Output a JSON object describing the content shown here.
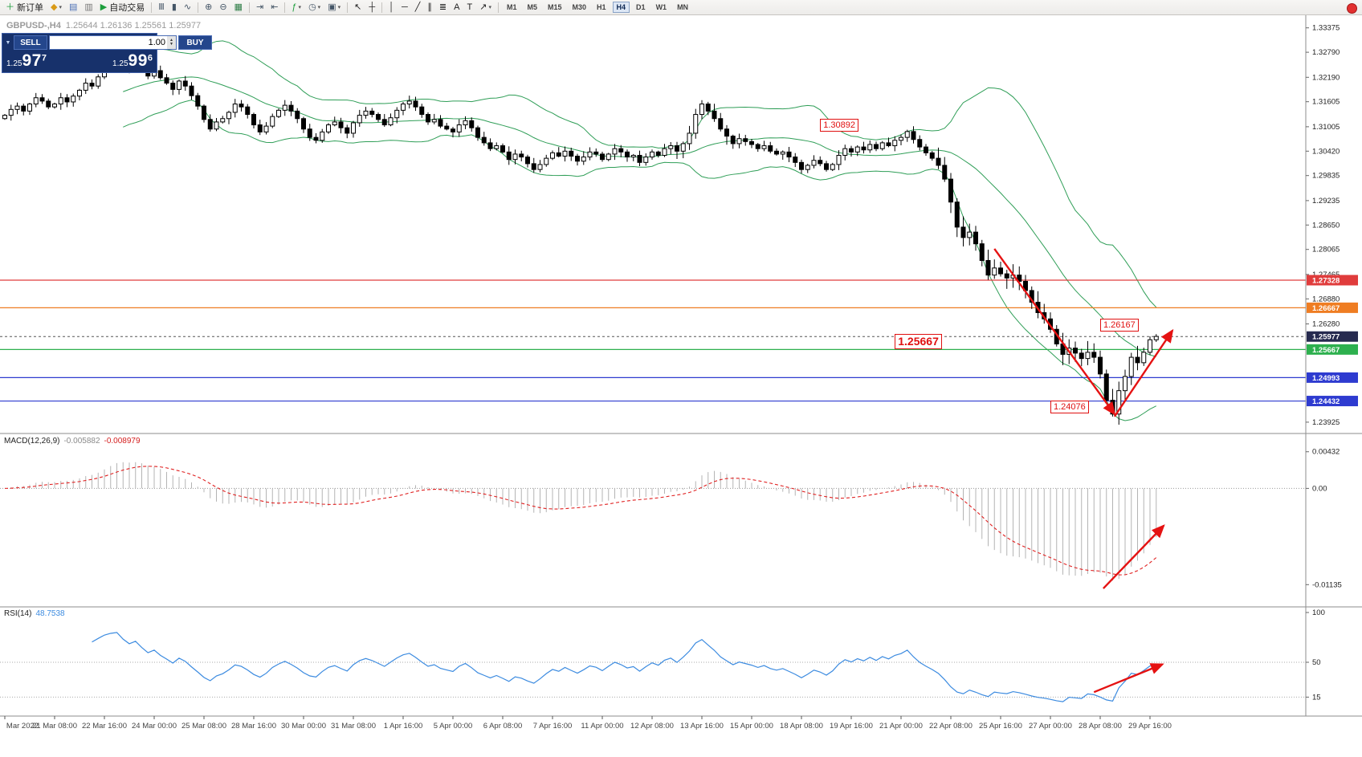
{
  "toolbar": {
    "items": [
      {
        "name": "new-order-button",
        "glyph": "＋",
        "color": "#1d9e3c",
        "label": "新订单"
      },
      {
        "name": "charts-window-icon",
        "glyph": "◆",
        "color": "#d99a16",
        "caret": true
      },
      {
        "name": "profiles-icon",
        "glyph": "▤",
        "color": "#4b6fb5"
      },
      {
        "name": "market-watch-icon",
        "glyph": "▥",
        "color": "#777777"
      },
      {
        "name": "autotrading-button",
        "glyph": "▶",
        "color": "#1d9e3c",
        "label": "自动交易"
      },
      {
        "type": "sep"
      },
      {
        "name": "bar-chart-icon",
        "glyph": "Ⅲ",
        "color": "#445566"
      },
      {
        "name": "candlestick-chart-icon",
        "glyph": "▮",
        "color": "#445566"
      },
      {
        "name": "line-chart-icon",
        "glyph": "∿",
        "color": "#445566"
      },
      {
        "type": "sep"
      },
      {
        "name": "zoom-in-icon",
        "glyph": "⊕",
        "color": "#445566"
      },
      {
        "name": "zoom-out-icon",
        "glyph": "⊖",
        "color": "#445566"
      },
      {
        "name": "tile-windows-icon",
        "glyph": "▦",
        "color": "#2d7d46"
      },
      {
        "type": "sep"
      },
      {
        "name": "auto-scroll-icon",
        "glyph": "⇥",
        "color": "#445566"
      },
      {
        "name": "chart-shift-icon",
        "glyph": "⇤",
        "color": "#445566"
      },
      {
        "type": "sep"
      },
      {
        "name": "indicators-icon",
        "glyph": "ƒ",
        "color": "#1d9e3c",
        "caret": true
      },
      {
        "name": "periods-icon",
        "glyph": "◷",
        "color": "#445566",
        "caret": true
      },
      {
        "name": "templates-icon",
        "glyph": "▣",
        "color": "#445566",
        "caret": true
      },
      {
        "type": "sep"
      },
      {
        "name": "cursor-icon",
        "glyph": "↖",
        "color": "#222222"
      },
      {
        "name": "crosshair-icon",
        "glyph": "┼",
        "color": "#222222"
      },
      {
        "type": "sep"
      },
      {
        "name": "vertical-line-icon",
        "glyph": "│",
        "color": "#222222"
      },
      {
        "name": "horizontal-line-icon",
        "glyph": "─",
        "color": "#222222"
      },
      {
        "name": "trendline-icon",
        "glyph": "╱",
        "color": "#222222"
      },
      {
        "name": "channel-icon",
        "glyph": "∥",
        "color": "#222222"
      },
      {
        "name": "fibonacci-icon",
        "glyph": "≣",
        "color": "#222222"
      },
      {
        "name": "text-icon",
        "glyph": "A",
        "color": "#222222"
      },
      {
        "name": "label-icon",
        "glyph": "T",
        "color": "#222222"
      },
      {
        "name": "arrows-tool-icon",
        "glyph": "↗",
        "color": "#222222",
        "caret": true
      },
      {
        "type": "sep"
      }
    ],
    "timeframes": [
      "M1",
      "M5",
      "M15",
      "M30",
      "H1",
      "H4",
      "D1",
      "W1",
      "MN"
    ],
    "active_timeframe": "H4"
  },
  "chart_header": {
    "symbol_title": "GBPUSD-,H4",
    "ohlc": "1.25644 1.26136 1.25561 1.25977"
  },
  "trade_panel": {
    "sell_label": "SELL",
    "buy_label": "BUY",
    "volume": "1.00",
    "bid": {
      "prefix": "1.25",
      "big": "97",
      "sup": "7"
    },
    "ask": {
      "prefix": "1.25",
      "big": "99",
      "sup": "6"
    }
  },
  "chart_data": {
    "type": "candlestick",
    "symbol": "GBPUSD",
    "timeframe": "H4",
    "first_open": 1.312,
    "closes": [
      1.3128,
      1.3142,
      1.315,
      1.3138,
      1.3155,
      1.317,
      1.3162,
      1.3148,
      1.3155,
      1.317,
      1.316,
      1.3174,
      1.3188,
      1.3205,
      1.3198,
      1.322,
      1.3245,
      1.326,
      1.3268,
      1.3252,
      1.324,
      1.3255,
      1.3238,
      1.3222,
      1.3235,
      1.3218,
      1.3205,
      1.319,
      1.321,
      1.3198,
      1.3175,
      1.315,
      1.3118,
      1.3095,
      1.3112,
      1.312,
      1.3135,
      1.3155,
      1.3148,
      1.313,
      1.3105,
      1.3088,
      1.3102,
      1.3125,
      1.314,
      1.3152,
      1.3138,
      1.312,
      1.3095,
      1.3075,
      1.3068,
      1.3088,
      1.3105,
      1.3112,
      1.3098,
      1.3085,
      1.311,
      1.3128,
      1.3138,
      1.313,
      1.3118,
      1.3105,
      1.3122,
      1.314,
      1.3155,
      1.3162,
      1.3148,
      1.313,
      1.3112,
      1.3118,
      1.3102,
      1.3095,
      1.3088,
      1.3105,
      1.3115,
      1.3098,
      1.3075,
      1.3062,
      1.3048,
      1.3055,
      1.304,
      1.3022,
      1.3035,
      1.3028,
      1.3012,
      1.2998,
      1.301,
      1.3025,
      1.3038,
      1.303,
      1.3042,
      1.303,
      1.3018,
      1.3028,
      1.304,
      1.3035,
      1.3022,
      1.3035,
      1.3048,
      1.304,
      1.3028,
      1.3032,
      1.3015,
      1.3028,
      1.304,
      1.3032,
      1.3048,
      1.3055,
      1.3042,
      1.306,
      1.3085,
      1.313,
      1.3155,
      1.3138,
      1.312,
      1.3095,
      1.3078,
      1.306,
      1.3072,
      1.3065,
      1.3058,
      1.3048,
      1.3055,
      1.3042,
      1.3035,
      1.304,
      1.3028,
      1.3015,
      1.2998,
      1.3008,
      1.302,
      1.3012,
      1.2998,
      1.301,
      1.3032,
      1.3048,
      1.304,
      1.3052,
      1.3045,
      1.3058,
      1.3048,
      1.3062,
      1.3055,
      1.3068,
      1.3075,
      1.3089,
      1.307,
      1.3052,
      1.3038,
      1.3025,
      1.3008,
      1.2975,
      1.292,
      1.286,
      1.2835,
      1.2848,
      1.282,
      1.278,
      1.2745,
      1.2762,
      1.2748,
      1.2738,
      1.2745,
      1.273,
      1.2708,
      1.268,
      1.2655,
      1.264,
      1.2615,
      1.258,
      1.2555,
      1.257,
      1.2558,
      1.2545,
      1.256,
      1.2548,
      1.2508,
      1.2445,
      1.2412,
      1.2468,
      1.2502,
      1.2548,
      1.2535,
      1.256,
      1.259,
      1.2598
    ],
    "bollinger": {
      "period": 20,
      "deviation": 2,
      "color": "#2f9e57"
    },
    "price_axis": {
      "ticks": [
        "1.33375",
        "1.32790",
        "1.32190",
        "1.31605",
        "1.31005",
        "1.30420",
        "1.29835",
        "1.29235",
        "1.28650",
        "1.28065",
        "1.27465",
        "1.26880",
        "1.26280",
        "1.23925"
      ],
      "badges": [
        {
          "text": "1.27328",
          "value": 1.27328,
          "color": "#e03c3c"
        },
        {
          "text": "1.26667",
          "value": 1.26667,
          "color": "#ef7d22"
        },
        {
          "text": "1.25977",
          "value": 1.25977,
          "color": "#262a4f"
        },
        {
          "text": "1.25667",
          "value": 1.25667,
          "color": "#2db04e"
        },
        {
          "text": "1.24993",
          "value": 1.24993,
          "color": "#2e3bd0"
        },
        {
          "text": "1.24432",
          "value": 1.24432,
          "color": "#2e3bd0"
        }
      ]
    },
    "hlines": [
      {
        "value": 1.27328,
        "color": "#e03c3c"
      },
      {
        "value": 1.26667,
        "color": "#ef7d22"
      },
      {
        "value": 1.25667,
        "color": "#2db04e"
      },
      {
        "value": 1.24993,
        "color": "#2e3bd0"
      },
      {
        "value": 1.24432,
        "color": "#2e3bd0"
      }
    ],
    "current_price": 1.25977,
    "price_labels": [
      {
        "text": "1.30892",
        "i": 131,
        "p": 1.3105,
        "size": "small"
      },
      {
        "text": "1.26167",
        "i": 176,
        "p": 1.2625,
        "size": "small"
      },
      {
        "text": "1.25667",
        "i": 143,
        "p": 1.2588,
        "size": "large"
      },
      {
        "text": "1.24076",
        "i": 168,
        "p": 1.2428,
        "size": "small"
      }
    ],
    "arrows": {
      "main": [
        {
          "i1": 159,
          "p1": 1.2808,
          "i2": 178.3,
          "p2": 1.2412
        },
        {
          "i1": 178.3,
          "p1": 1.2406,
          "i2": 187.6,
          "p2": 1.2612
        }
      ],
      "macd": [
        {
          "i1": 176.5,
          "v1": -0.0118,
          "i2": 186.2,
          "v2": -0.0044
        }
      ],
      "rsi": [
        {
          "i1": 175,
          "v1": 20,
          "i2": 186,
          "v2": 48
        }
      ]
    },
    "macd": {
      "label": "MACD(12,26,9)",
      "value_main": "-0.005882",
      "value_signal": "-0.008979",
      "fast": 12,
      "slow": 26,
      "signal": 9,
      "axis": [
        {
          "t": "0.00432",
          "v": 0.00432
        },
        {
          "t": "0.00",
          "v": 0
        },
        {
          "t": "-0.01135",
          "v": -0.01135
        }
      ]
    },
    "rsi": {
      "label": "RSI(14)",
      "value": "48.7538",
      "period": 14,
      "levels": [
        50,
        15
      ],
      "axis": [
        {
          "t": "100",
          "v": 100
        },
        {
          "t": "50",
          "v": 50
        },
        {
          "t": "15",
          "v": 15
        }
      ]
    },
    "x_labels": [
      {
        "i": 0,
        "t": "Mar 2022"
      },
      {
        "i": 8,
        "t": "21 Mar 08:00"
      },
      {
        "i": 16,
        "t": "22 Mar 16:00"
      },
      {
        "i": 24,
        "t": "24 Mar 00:00"
      },
      {
        "i": 32,
        "t": "25 Mar 08:00"
      },
      {
        "i": 40,
        "t": "28 Mar 16:00"
      },
      {
        "i": 48,
        "t": "30 Mar 00:00"
      },
      {
        "i": 56,
        "t": "31 Mar 08:00"
      },
      {
        "i": 64,
        "t": "1 Apr 16:00"
      },
      {
        "i": 72,
        "t": "5 Apr 00:00"
      },
      {
        "i": 80,
        "t": "6 Apr 08:00"
      },
      {
        "i": 88,
        "t": "7 Apr 16:00"
      },
      {
        "i": 96,
        "t": "11 Apr 00:00"
      },
      {
        "i": 104,
        "t": "12 Apr 08:00"
      },
      {
        "i": 112,
        "t": "13 Apr 16:00"
      },
      {
        "i": 120,
        "t": "15 Apr 00:00"
      },
      {
        "i": 128,
        "t": "18 Apr 08:00"
      },
      {
        "i": 136,
        "t": "19 Apr 16:00"
      },
      {
        "i": 144,
        "t": "21 Apr 00:00"
      },
      {
        "i": 152,
        "t": "22 Apr 08:00"
      },
      {
        "i": 160,
        "t": "25 Apr 16:00"
      },
      {
        "i": 168,
        "t": "27 Apr 00:00"
      },
      {
        "i": 176,
        "t": "28 Apr 08:00"
      },
      {
        "i": 184,
        "t": "29 Apr 16:00"
      }
    ]
  }
}
